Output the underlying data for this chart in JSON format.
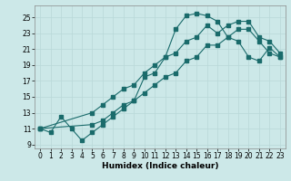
{
  "title": "",
  "xlabel": "Humidex (Indice chaleur)",
  "ylabel": "",
  "bg_color": "#cce8e8",
  "grid_color": "#d4eded",
  "line_color": "#1a6b6b",
  "xlim": [
    -0.5,
    23.5
  ],
  "ylim": [
    8.5,
    26.5
  ],
  "xticks": [
    0,
    1,
    2,
    3,
    4,
    5,
    6,
    7,
    8,
    9,
    10,
    11,
    12,
    13,
    14,
    15,
    16,
    17,
    18,
    19,
    20,
    21,
    22,
    23
  ],
  "yticks": [
    9,
    11,
    13,
    15,
    17,
    19,
    21,
    23,
    25
  ],
  "curve1": {
    "x": [
      0,
      1,
      2,
      3,
      4,
      5,
      6,
      7,
      8,
      9,
      10,
      11,
      12,
      13,
      14,
      15,
      16,
      17,
      18,
      19,
      20,
      21,
      22,
      23
    ],
    "y": [
      11,
      10.5,
      12.5,
      11,
      9.5,
      10.5,
      11.5,
      12.5,
      13.5,
      14.5,
      17.5,
      18,
      20,
      23.5,
      25.2,
      25.5,
      25.2,
      24.5,
      22.5,
      22,
      20,
      19.5,
      21.2,
      20
    ]
  },
  "curve2": {
    "x": [
      0,
      5,
      6,
      7,
      8,
      9,
      10,
      11,
      12,
      13,
      14,
      15,
      16,
      17,
      18,
      19,
      20,
      21,
      22,
      23
    ],
    "y": [
      11,
      11.5,
      12,
      13,
      14,
      14.5,
      15.5,
      16.5,
      17.5,
      18,
      19.5,
      20,
      21.5,
      21.5,
      22.5,
      23.5,
      23.5,
      22,
      20.5,
      20
    ]
  },
  "curve3": {
    "x": [
      0,
      5,
      6,
      7,
      8,
      9,
      10,
      11,
      12,
      13,
      14,
      15,
      16,
      17,
      18,
      19,
      20,
      21,
      22,
      23
    ],
    "y": [
      11,
      13,
      14,
      15,
      16,
      16.5,
      18,
      19,
      20,
      20.5,
      22,
      22.5,
      24,
      23,
      24,
      24.5,
      24.5,
      22.5,
      22,
      20.5
    ]
  }
}
